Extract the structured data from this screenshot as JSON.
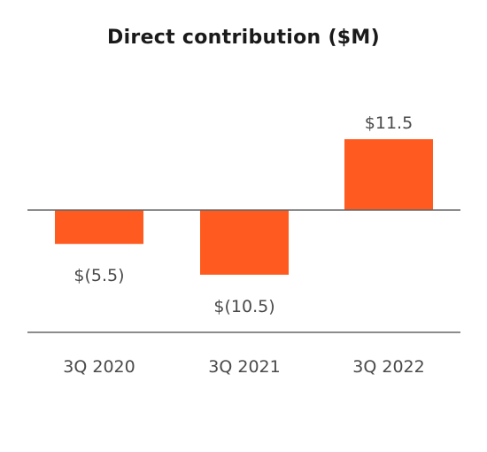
{
  "chart_data": {
    "type": "bar",
    "title": "Direct contribution ($M)",
    "categories": [
      "3Q 2020",
      "3Q 2021",
      "3Q 2022"
    ],
    "values": [
      -5.5,
      -10.5,
      11.5
    ],
    "value_labels": [
      "$(5.5)",
      "$(10.5)",
      "$11.5"
    ],
    "xlabel": "",
    "ylabel": "",
    "ylim": [
      -10.5,
      11.5
    ],
    "grid": false,
    "legend": "none",
    "bar_color": "#ff5a1f",
    "axis_color": "#666666"
  }
}
